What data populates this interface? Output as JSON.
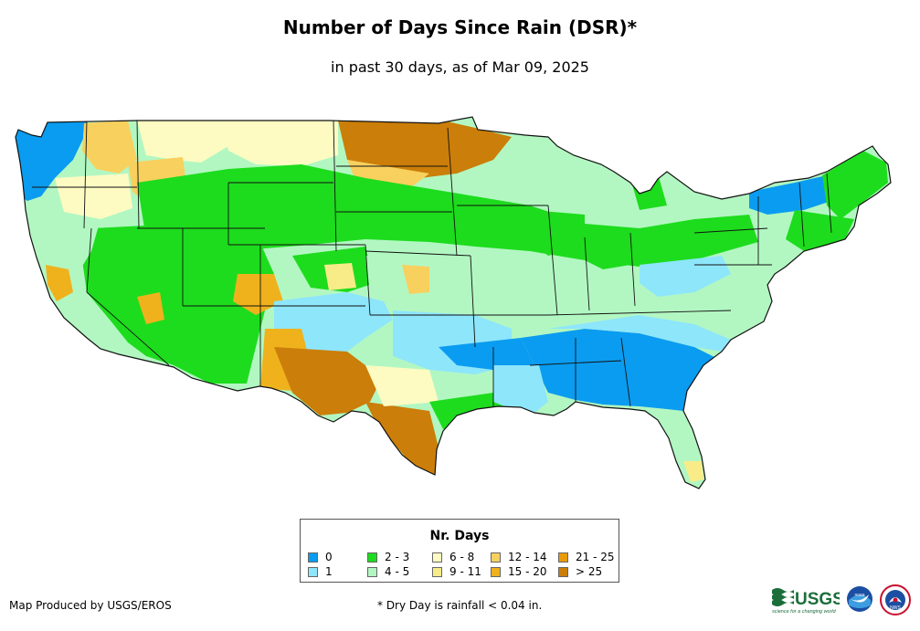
{
  "title": "Number of Days Since Rain (DSR)*",
  "subtitle": "in past 30 days, as of Mar 09, 2025",
  "legend": {
    "title": "Nr. Days",
    "items": [
      {
        "label": "0",
        "color": "#0a9cf0"
      },
      {
        "label": "1",
        "color": "#8ee6fb"
      },
      {
        "label": "2 - 3",
        "color": "#1ddc1d"
      },
      {
        "label": "4 - 5",
        "color": "#b2f7c2"
      },
      {
        "label": "6 - 8",
        "color": "#fdfbc2"
      },
      {
        "label": "9 - 11",
        "color": "#f8ec88"
      },
      {
        "label": "12 - 14",
        "color": "#f8d05e"
      },
      {
        "label": "15 - 20",
        "color": "#efb21d"
      },
      {
        "label": "21 - 25",
        "color": "#e99a0a"
      },
      {
        "label": "> 25",
        "color": "#cb7e09"
      }
    ]
  },
  "footer": {
    "producer": "Map Produced by USGS/EROS",
    "note": "* Dry Day is rainfall < 0.04 in."
  },
  "logos": {
    "usgs": "USGS",
    "usgs_tagline": "science for a changing world",
    "noaa": "noaa",
    "nws": "NWS"
  },
  "map": {
    "region": "Contiguous United States",
    "base_color": "#b2f7c2",
    "border_color": "#111111"
  }
}
